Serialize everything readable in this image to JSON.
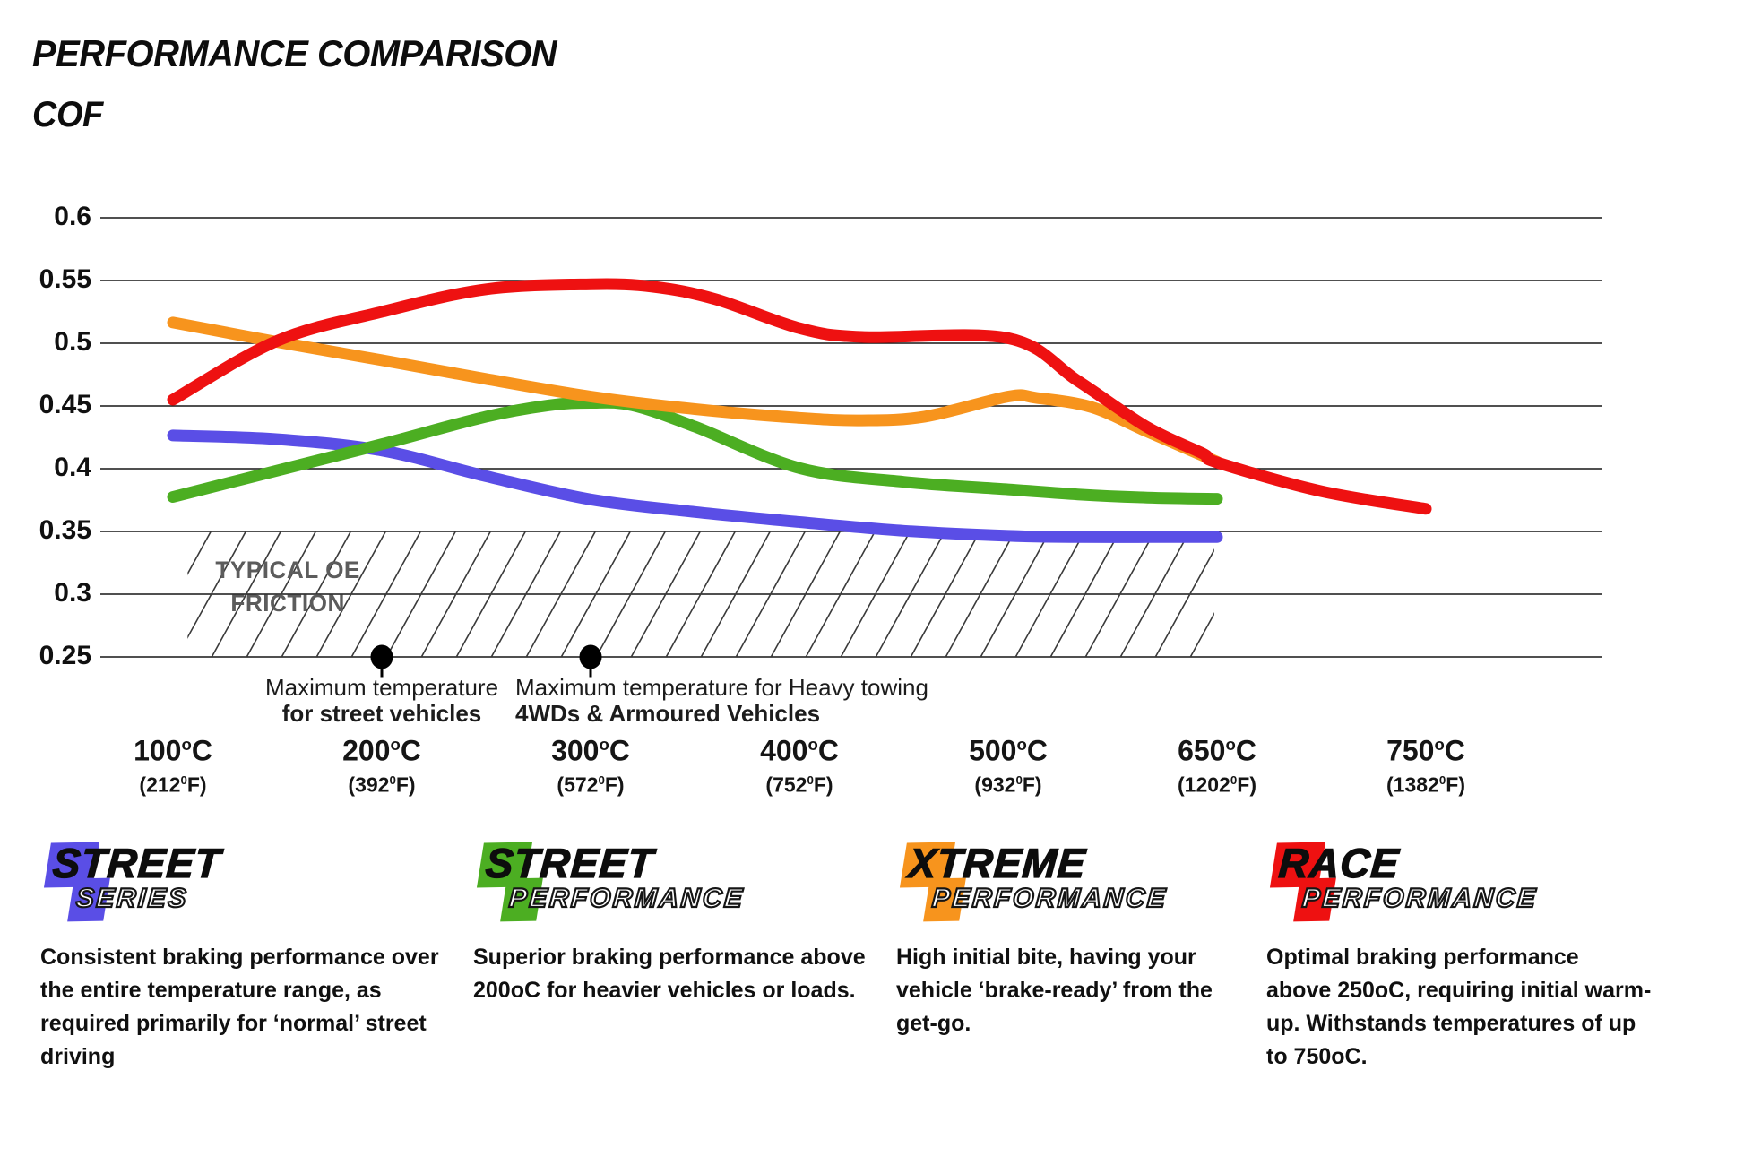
{
  "title": "PERFORMANCE COMPARISON",
  "chart_data": {
    "type": "line",
    "title": "PERFORMANCE COMPARISON",
    "ylabel": "COF",
    "grid": true,
    "ylim": [
      0.25,
      0.6
    ],
    "y_ticks": [
      "0.6",
      "0.55",
      "0.5",
      "0.45",
      "0.4",
      "0.35",
      "0.3",
      "0.25"
    ],
    "y_tick_values": [
      0.6,
      0.55,
      0.5,
      0.45,
      0.4,
      0.35,
      0.3,
      0.25
    ],
    "x_ticks": [
      {
        "temp": 100,
        "c": "100",
        "f": "212"
      },
      {
        "temp": 200,
        "c": "200",
        "f": "392"
      },
      {
        "temp": 300,
        "c": "300",
        "f": "572"
      },
      {
        "temp": 400,
        "c": "400",
        "f": "752"
      },
      {
        "temp": 500,
        "c": "500",
        "f": "932"
      },
      {
        "temp": 650,
        "c": "650",
        "f": "1202"
      },
      {
        "temp": 750,
        "c": "750",
        "f": "1382"
      }
    ],
    "series": [
      {
        "name": "Street Series",
        "color": "#5a4ee6",
        "points": [
          [
            100,
            0.4265
          ],
          [
            150,
            0.4235
          ],
          [
            200,
            0.4145
          ],
          [
            250,
            0.394
          ],
          [
            300,
            0.3755
          ],
          [
            350,
            0.3655
          ],
          [
            400,
            0.3575
          ],
          [
            450,
            0.3505
          ],
          [
            500,
            0.3465
          ],
          [
            550,
            0.3455
          ],
          [
            600,
            0.3455
          ],
          [
            650,
            0.3455
          ]
        ]
      },
      {
        "name": "Street Performance",
        "color": "#4cae22",
        "points": [
          [
            100,
            0.3775
          ],
          [
            150,
            0.3985
          ],
          [
            200,
            0.4195
          ],
          [
            250,
            0.4415
          ],
          [
            280,
            0.4505
          ],
          [
            300,
            0.4525
          ],
          [
            320,
            0.4505
          ],
          [
            350,
            0.4335
          ],
          [
            400,
            0.4005
          ],
          [
            450,
            0.3895
          ],
          [
            500,
            0.3835
          ],
          [
            550,
            0.3795
          ],
          [
            600,
            0.377
          ],
          [
            650,
            0.376
          ]
        ]
      },
      {
        "name": "Xtreme Performance",
        "color": "#f7941d",
        "points": [
          [
            100,
            0.5165
          ],
          [
            150,
            0.501
          ],
          [
            200,
            0.4865
          ],
          [
            250,
            0.4715
          ],
          [
            300,
            0.4575
          ],
          [
            350,
            0.4475
          ],
          [
            400,
            0.4405
          ],
          [
            430,
            0.4385
          ],
          [
            460,
            0.4415
          ],
          [
            500,
            0.4575
          ],
          [
            520,
            0.4565
          ],
          [
            560,
            0.449
          ],
          [
            600,
            0.4295
          ],
          [
            650,
            0.4055
          ]
        ]
      },
      {
        "name": "Race Performance",
        "color": "#ee1111",
        "points": [
          [
            100,
            0.455
          ],
          [
            150,
            0.502
          ],
          [
            200,
            0.525
          ],
          [
            250,
            0.543
          ],
          [
            300,
            0.547
          ],
          [
            330,
            0.545
          ],
          [
            360,
            0.535
          ],
          [
            400,
            0.512
          ],
          [
            430,
            0.505
          ],
          [
            500,
            0.504
          ],
          [
            550,
            0.47
          ],
          [
            600,
            0.433
          ],
          [
            640,
            0.412
          ],
          [
            650,
            0.405
          ],
          [
            700,
            0.382
          ],
          [
            750,
            0.368
          ]
        ]
      }
    ],
    "oe_band": {
      "label_lines": [
        "TYPICAL OE",
        "FRICTION"
      ],
      "value_from": 0.25,
      "value_to": 0.35,
      "temp_from": 107,
      "temp_to": 648
    },
    "annotations": [
      {
        "temp": 200,
        "value": 0.25,
        "align": "center",
        "lines": [
          "Maximum temperature",
          "for street vehicles"
        ]
      },
      {
        "temp": 300,
        "value": 0.25,
        "align": "left",
        "lines": [
          "Maximum temperature for Heavy towing",
          "4WDs & Armoured Vehicles"
        ]
      }
    ]
  },
  "legend": {
    "brands": [
      {
        "word1": "STREET",
        "word2": "SERIES",
        "color": "#5a4ee6",
        "description_lines": [
          "Consistent braking performance over",
          "the entire temperature range, as",
          "required primarily for ‘normal’ street",
          "driving"
        ]
      },
      {
        "word1": "STREET",
        "word2": "PERFORMANCE",
        "color": "#4cae22",
        "description_lines": [
          "Superior braking performance above",
          "200oC for heavier vehicles or loads."
        ]
      },
      {
        "word1": "XTREME",
        "word2": "PERFORMANCE",
        "color": "#f7941d",
        "description_lines": [
          "High initial bite, having your",
          "vehicle ‘brake-ready’ from the",
          "get-go."
        ]
      },
      {
        "word1": "RACE",
        "word2": "PERFORMANCE",
        "color": "#ee1111",
        "description_lines": [
          "Optimal braking performance",
          "above 250oC, requiring initial warm-",
          "up. Withstands temperatures of up",
          "to 750oC."
        ]
      }
    ]
  }
}
